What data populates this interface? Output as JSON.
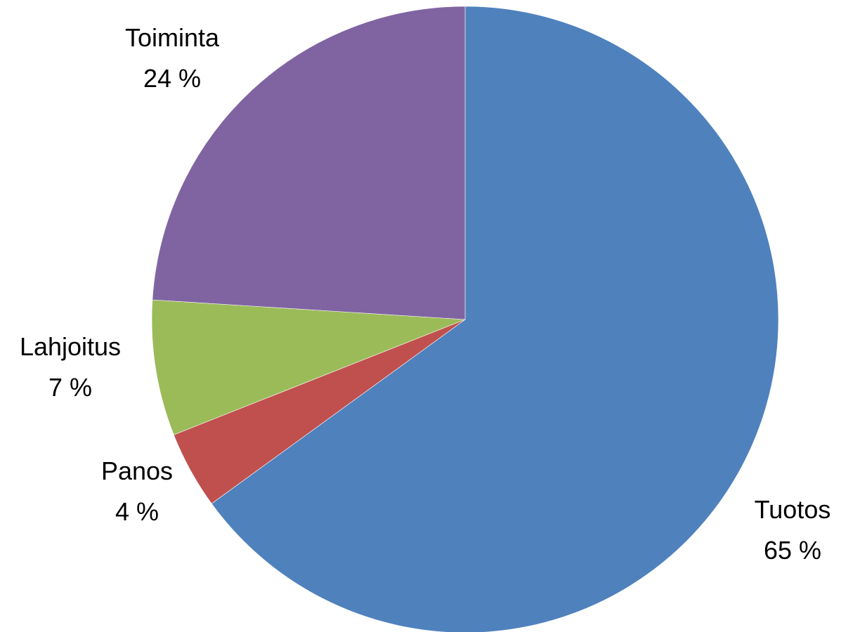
{
  "chart_data": {
    "type": "pie",
    "title": "",
    "start_angle_deg": 0,
    "direction": "clockwise",
    "slices": [
      {
        "label": "Tuotos",
        "value": 65,
        "value_text": "65 %",
        "color": "#4F81BD"
      },
      {
        "label": "Panos",
        "value": 4,
        "value_text": "4 %",
        "color": "#C0504D"
      },
      {
        "label": "Lahjoitus",
        "value": 7,
        "value_text": "7 %",
        "color": "#9BBB59"
      },
      {
        "label": "Toiminta",
        "value": 24,
        "value_text": "24 %",
        "color": "#8064A2"
      }
    ],
    "legend": "none",
    "data_labels": "outside, category name and percentage"
  }
}
